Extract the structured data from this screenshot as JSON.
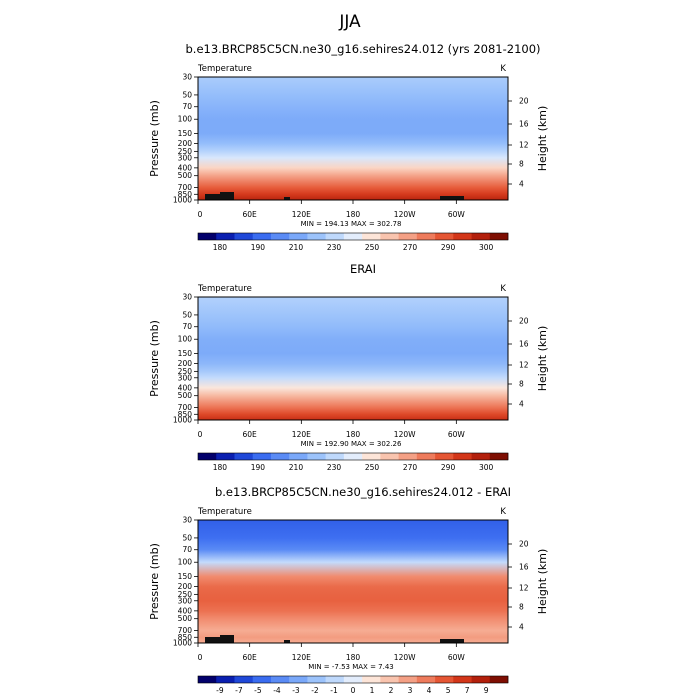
{
  "figure": {
    "title": "JJA"
  },
  "chart_data": [
    {
      "type": "heatmap",
      "title": "b.e13.BRCP85C5CN.ne30_g16.sehires24.012 (yrs 2081-2100)",
      "variable": "Temperature",
      "units": "K",
      "ylabel": "Pressure (mb)",
      "ylabel_right": "Height (km)",
      "pressure_ticks": [
        "30",
        "50",
        "70",
        "100",
        "150",
        "200",
        "250",
        "300",
        "400",
        "500",
        "700",
        "850",
        "1000"
      ],
      "height_ticks": [
        "20",
        "16",
        "12",
        "8",
        "4"
      ],
      "x_ticks": [
        "0",
        "60E",
        "120E",
        "180",
        "120W",
        "60W"
      ],
      "min_max": "MIN = 194.13  MAX = 302.78",
      "colorbar_labels": [
        "180",
        "190",
        "210",
        "230",
        "250",
        "270",
        "290",
        "300"
      ],
      "colorbar_colors": [
        "#02006b",
        "#0a1fb0",
        "#1f48d8",
        "#3a6cf0",
        "#5a8bf5",
        "#7aa8f9",
        "#9cc3fb",
        "#bfd9fc",
        "#e3edfc",
        "#fde5d8",
        "#f9c4ae",
        "#f4a085",
        "#ee7b5c",
        "#e55634",
        "#d33619",
        "#b3200c",
        "#7e0e02"
      ],
      "profile_pressure_mb": [
        30,
        50,
        70,
        100,
        150,
        200,
        250,
        300,
        400,
        500,
        700,
        850,
        1000
      ],
      "profile_values_K": [
        224,
        219,
        216,
        213,
        213,
        219,
        227,
        235,
        250,
        262,
        278,
        287,
        295
      ]
    },
    {
      "type": "heatmap",
      "title": "ERAI",
      "variable": "Temperature",
      "units": "K",
      "ylabel": "Pressure (mb)",
      "ylabel_right": "Height (km)",
      "pressure_ticks": [
        "30",
        "50",
        "70",
        "100",
        "150",
        "200",
        "250",
        "300",
        "400",
        "500",
        "700",
        "850",
        "1000"
      ],
      "height_ticks": [
        "20",
        "16",
        "12",
        "8",
        "4"
      ],
      "x_ticks": [
        "0",
        "60E",
        "120E",
        "180",
        "120W",
        "60W"
      ],
      "min_max": "MIN = 192.90  MAX = 302.26",
      "colorbar_labels": [
        "180",
        "190",
        "210",
        "230",
        "250",
        "270",
        "290",
        "300"
      ],
      "colorbar_colors": [
        "#02006b",
        "#0a1fb0",
        "#1f48d8",
        "#3a6cf0",
        "#5a8bf5",
        "#7aa8f9",
        "#9cc3fb",
        "#bfd9fc",
        "#e3edfc",
        "#fde5d8",
        "#f9c4ae",
        "#f4a085",
        "#ee7b5c",
        "#e55634",
        "#d33619",
        "#b3200c",
        "#7e0e02"
      ],
      "profile_pressure_mb": [
        30,
        50,
        70,
        100,
        150,
        200,
        250,
        300,
        400,
        500,
        700,
        850,
        1000
      ],
      "profile_values_K": [
        226,
        221,
        218,
        214,
        213,
        217,
        223,
        230,
        245,
        257,
        273,
        283,
        291
      ]
    },
    {
      "type": "heatmap",
      "title": "b.e13.BRCP85C5CN.ne30_g16.sehires24.012 - ERAI",
      "variable": "Temperature",
      "units": "K",
      "ylabel": "Pressure (mb)",
      "ylabel_right": "Height (km)",
      "pressure_ticks": [
        "30",
        "50",
        "70",
        "100",
        "150",
        "200",
        "250",
        "300",
        "400",
        "500",
        "700",
        "850",
        "1000"
      ],
      "height_ticks": [
        "20",
        "16",
        "12",
        "8",
        "4"
      ],
      "x_ticks": [
        "0",
        "60E",
        "120E",
        "180",
        "120W",
        "60W"
      ],
      "min_max": "MIN = -7.53  MAX =  7.43",
      "colorbar_labels": [
        "-9",
        "-7",
        "-5",
        "-4",
        "-3",
        "-2",
        "-1",
        "0",
        "1",
        "2",
        "3",
        "4",
        "5",
        "7",
        "9"
      ],
      "colorbar_colors": [
        "#02006b",
        "#0a1fb0",
        "#1f48d8",
        "#3a6cf0",
        "#5a8bf5",
        "#7aa8f9",
        "#9cc3fb",
        "#bfd9fc",
        "#e3edfc",
        "#fde5d8",
        "#f9c4ae",
        "#f4a085",
        "#ee7b5c",
        "#e55634",
        "#d33619",
        "#b3200c",
        "#7e0e02"
      ],
      "profile_pressure_mb": [
        30,
        50,
        70,
        100,
        150,
        200,
        250,
        300,
        400,
        500,
        700,
        850,
        1000
      ],
      "profile_values_K": [
        -6,
        -5.5,
        -4.5,
        -1,
        4,
        5,
        5.2,
        5.3,
        4.8,
        4,
        3,
        3.5,
        3
      ]
    }
  ]
}
